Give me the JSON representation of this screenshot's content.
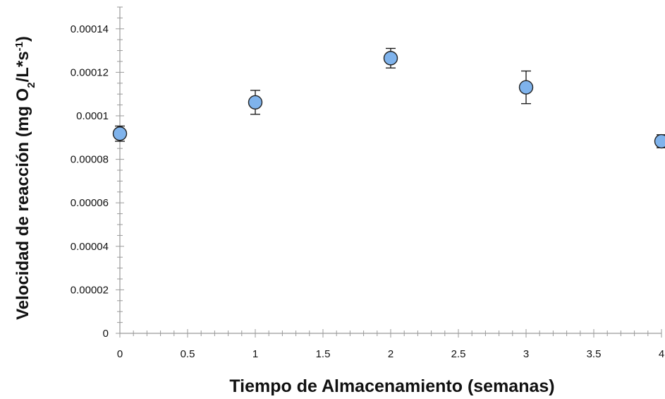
{
  "chart_data": {
    "type": "scatter",
    "title": "",
    "xlabel": "Tiempo de Almacenamiento (semanas)",
    "ylabel_parts": [
      "Velocidad de reacción (mg O",
      "2",
      "/L*s",
      "-1",
      ")"
    ],
    "xlim": [
      0,
      4
    ],
    "ylim": [
      0,
      0.00015
    ],
    "x_ticks": [
      0,
      0.5,
      1,
      1.5,
      2,
      2.5,
      3,
      3.5,
      4
    ],
    "x_tick_labels": [
      "0",
      "0.5",
      "1",
      "1.5",
      "2",
      "2.5",
      "3",
      "3.5",
      "4"
    ],
    "y_ticks": [
      0,
      2e-05,
      4e-05,
      6e-05,
      8e-05,
      0.0001,
      0.00012,
      0.00014
    ],
    "y_tick_labels": [
      "0",
      "0.00002",
      "0.00004",
      "0.00006",
      "0.00008",
      "0.0001",
      "0.00012",
      "0.00014"
    ],
    "grid": false,
    "legend": "none",
    "series": [
      {
        "x": [
          0,
          1,
          2,
          3,
          4
        ],
        "y": [
          9.18e-05,
          0.0001062,
          0.0001265,
          0.0001131,
          8.83e-05
        ],
        "error": [
          3.5e-06,
          5.5e-06,
          4.5e-06,
          7.5e-06,
          3e-06
        ],
        "color": "#7fb3ec"
      }
    ]
  }
}
